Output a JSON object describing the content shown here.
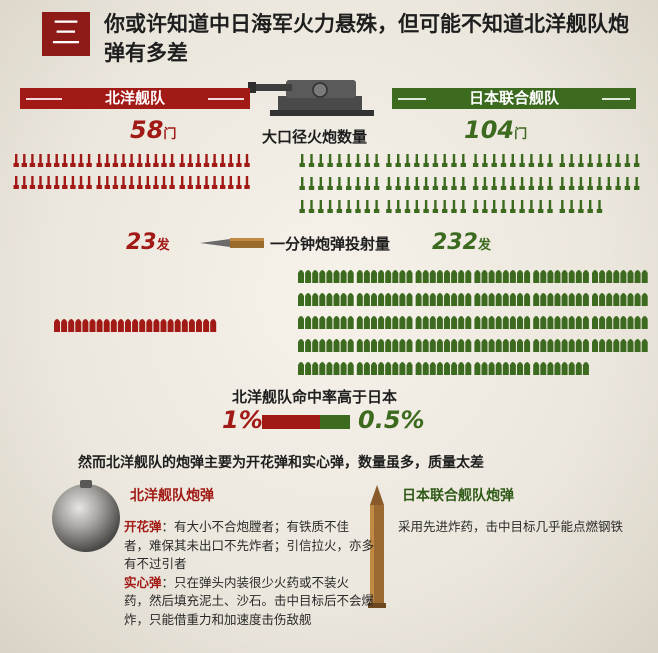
{
  "header": {
    "number": "三",
    "title": "你或许知道中日海军火力悬殊，但可能不知道北洋舰队炮弹有多差"
  },
  "sides": {
    "beiyang_label": "北洋舰队",
    "japan_label": "日本联合舰队"
  },
  "guns": {
    "label": "大口径火炮数量",
    "beiyang_value": "58",
    "japan_value": "104",
    "unit": "门",
    "beiyang_count": 58,
    "japan_count": 104
  },
  "fire_rate": {
    "label": "一分钟炮弹投射量",
    "beiyang_value": "23",
    "japan_value": "232",
    "unit": "发",
    "beiyang_count": 23,
    "japan_count": 232
  },
  "hit_rate": {
    "label": "北洋舰队命中率高于日本",
    "beiyang": "1%",
    "japan": "0.5%",
    "beiyang_pct": 1,
    "japan_pct": 0.5
  },
  "note": "然而北洋舰队的炮弹主要为开花弹和实心弹，数量虽多，质量太差",
  "shells": {
    "beiyang_title": "北洋舰队炮弹",
    "japan_title": "日本联合舰队炮弹",
    "kaihua_key": "开花弹",
    "kaihua_text": "：有大小不合炮膛者；有铁质不佳者，难保其未出口不先炸者；引信拉火，亦多有不过引者",
    "shixin_key": "实心弹",
    "shixin_text": "：只在弹头内装很少火药或不装火药，然后填充泥土、沙石。击中目标后不会爆炸，只能借重力和加速度击伤敌舰",
    "japan_text": "采用先进炸药，击中目标几乎能点燃钢铁"
  },
  "colors": {
    "red": "#a11a16",
    "green": "#3c6a1f",
    "dark_red_box": "#8e1b17"
  }
}
